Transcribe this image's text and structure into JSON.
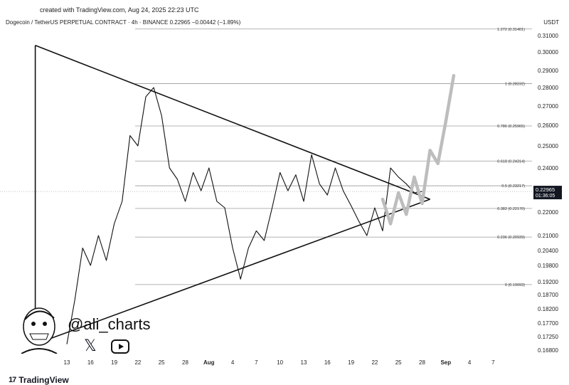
{
  "header": {
    "created": "created with TradingView.com, Aug 24, 2025 22:23 UTC",
    "symbol": "Dogecoin / TetherUS PERPETUAL CONTRACT · 4h · BINANCE",
    "price": "0.22965",
    "change": "−0.00442 (−1.89%)",
    "currency": "USDT"
  },
  "brand": {
    "name": "TradingView",
    "mark": "17"
  },
  "social": {
    "handle": "@ali_charts",
    "x_icon": "x-logo-icon",
    "youtube_icon": "youtube-play-icon"
  },
  "price_tag": {
    "price": "0.22965",
    "countdown": "01:36:05",
    "color": "#131722"
  },
  "chart_data": {
    "type": "line",
    "title": "",
    "xlabel": "",
    "ylabel": "",
    "ylim": [
      0.166,
      0.318
    ],
    "y_ticks": [
      "0.31000",
      "0.30000",
      "0.29000",
      "0.28000",
      "0.27000",
      "0.26000",
      "0.25000",
      "0.24000",
      "0.23000",
      "0.22000",
      "0.21000",
      "0.20400",
      "0.19800",
      "0.19200",
      "0.18700",
      "0.18200",
      "0.17700",
      "0.17250",
      "0.16800"
    ],
    "x_ticks": [
      "13",
      "16",
      "19",
      "22",
      "25",
      "28",
      "Aug",
      "4",
      "7",
      "10",
      "13",
      "16",
      "19",
      "22",
      "25",
      "28",
      "Sep",
      "4",
      "7"
    ],
    "fib_levels": [
      {
        "label": "1.272 (0.31401)",
        "value": 0.31401
      },
      {
        "label": "1 (0.28232)",
        "value": 0.28232
      },
      {
        "label": "0.786 (0.25965)",
        "value": 0.25965
      },
      {
        "label": "0.618 (0.24314)",
        "value": 0.24314
      },
      {
        "label": "0.5 (0.23217)",
        "value": 0.23217
      },
      {
        "label": "0.382 (0.22170)",
        "value": 0.2217
      },
      {
        "label": "0.236 (0.20939)",
        "value": 0.20939
      },
      {
        "label": "0 (0.19093)",
        "value": 0.19093
      }
    ],
    "price_series": {
      "x_day": [
        0,
        1,
        2,
        3,
        4,
        5,
        6,
        7,
        8,
        9,
        10,
        11,
        12,
        13,
        14,
        15,
        16,
        17,
        18,
        19,
        20,
        21,
        22,
        23,
        24,
        25,
        26,
        27,
        28,
        29,
        30,
        31,
        32,
        33,
        34,
        35,
        36,
        37,
        38,
        39,
        40,
        41,
        42,
        43,
        44,
        45
      ],
      "y": [
        0.17,
        0.185,
        0.205,
        0.198,
        0.21,
        0.2,
        0.215,
        0.225,
        0.255,
        0.25,
        0.275,
        0.28,
        0.265,
        0.24,
        0.235,
        0.225,
        0.238,
        0.23,
        0.24,
        0.225,
        0.222,
        0.205,
        0.193,
        0.205,
        0.212,
        0.208,
        0.222,
        0.238,
        0.23,
        0.237,
        0.225,
        0.246,
        0.233,
        0.228,
        0.24,
        0.23,
        0.223,
        0.216,
        0.21,
        0.222,
        0.212,
        0.24,
        0.236,
        0.233,
        0.229,
        0.2297
      ]
    },
    "projection": {
      "x_day": [
        40,
        41,
        42,
        43,
        44,
        45,
        46,
        47,
        48,
        49
      ],
      "y": [
        0.226,
        0.215,
        0.229,
        0.219,
        0.236,
        0.224,
        0.248,
        0.242,
        0.262,
        0.287
      ]
    },
    "triangle": {
      "upper": [
        [
          -4,
          0.304
        ],
        [
          46,
          0.226
        ]
      ],
      "lower": [
        [
          -4,
          0.17
        ],
        [
          46,
          0.226
        ]
      ],
      "left_edge": [
        [
          -4,
          0.17
        ],
        [
          -4,
          0.304
        ]
      ]
    }
  }
}
